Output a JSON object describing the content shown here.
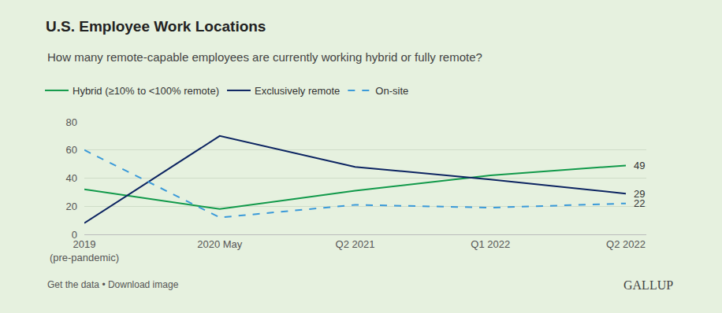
{
  "chart_data": {
    "type": "line",
    "title": "U.S. Employee Work Locations",
    "subtitle": "How many remote-capable employees are currently working hybrid or fully remote?",
    "categories": [
      "2019 (pre-pandemic)",
      "2020 May",
      "Q2 2021",
      "Q1 2022",
      "Q2 2022"
    ],
    "series": [
      {
        "name": "Hybrid (≥10% to <100% remote)",
        "color": "#11994a",
        "line_style": "solid",
        "values": [
          32,
          18,
          31,
          42,
          49
        ]
      },
      {
        "name": "Exclusively remote",
        "color": "#0c2461",
        "line_style": "solid",
        "values": [
          8,
          70,
          48,
          39,
          29
        ]
      },
      {
        "name": "On-site",
        "color": "#3b9ad9",
        "line_style": "dashed",
        "values": [
          60,
          12,
          21,
          19,
          22
        ]
      }
    ],
    "ylim": [
      0,
      80
    ],
    "yticks": [
      0,
      20,
      40,
      60,
      80
    ],
    "grid": true,
    "legend": "top",
    "annotations": [
      {
        "x": "Q2 2022",
        "y": 49,
        "text": "49"
      },
      {
        "x": "Q2 2022",
        "y": 29,
        "text": "29"
      },
      {
        "x": "Q2 2022",
        "y": 22,
        "text": "22"
      }
    ],
    "footer": "Get the data • Download image",
    "brand": "GALLUP"
  }
}
